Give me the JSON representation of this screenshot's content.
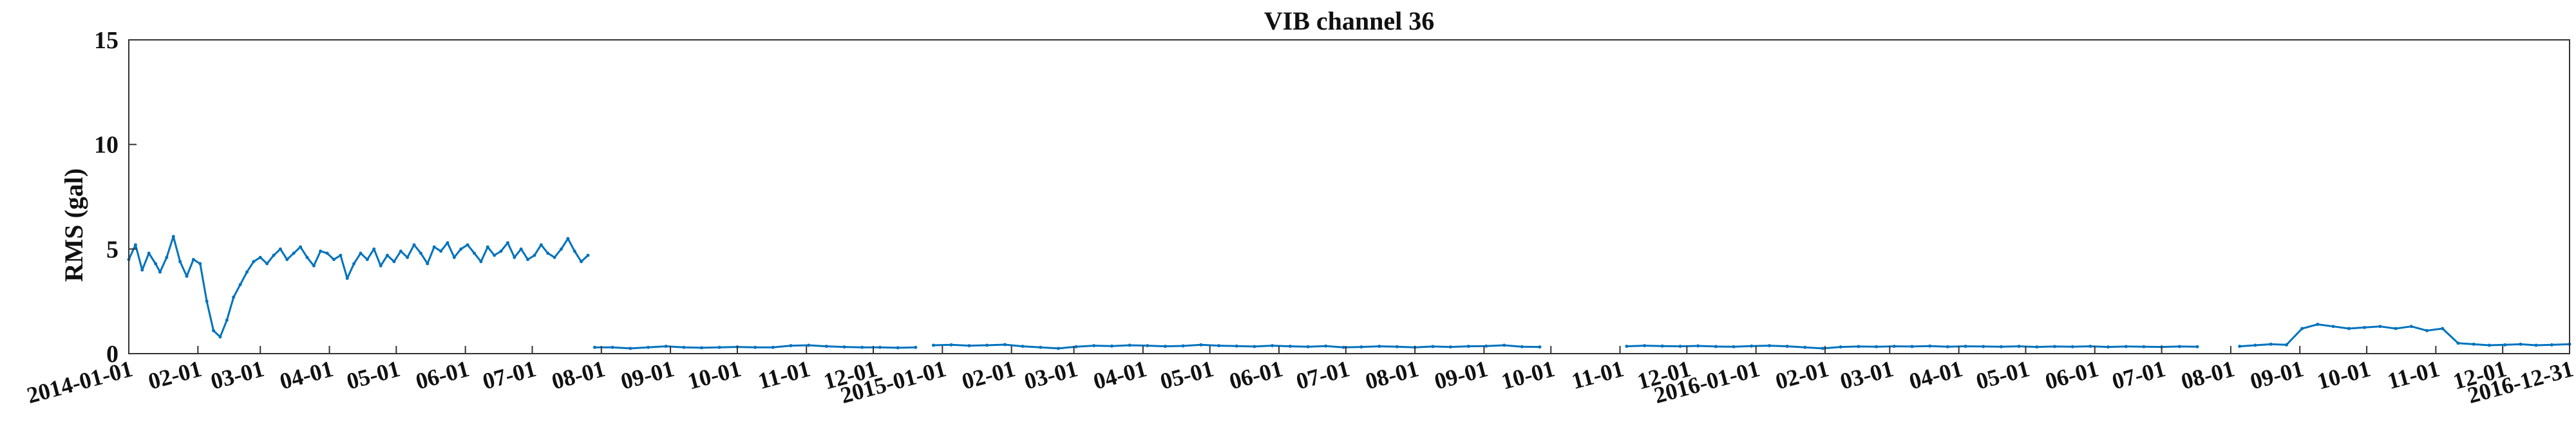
{
  "chart_data": {
    "type": "line",
    "title": "VIB channel 36",
    "xlabel": "",
    "ylabel": "RMS (gal)",
    "ylim": [
      0,
      15
    ],
    "yticks": [
      0,
      5,
      10,
      15
    ],
    "xlim": [
      "2014-01-01",
      "2016-12-31"
    ],
    "xticks": [
      "2014-01-01",
      "2014-02-01",
      "2014-03-01",
      "2014-04-01",
      "2014-05-01",
      "2014-06-01",
      "2014-07-01",
      "2014-08-01",
      "2014-09-01",
      "2014-10-01",
      "2014-11-01",
      "2014-12-01",
      "2015-01-01",
      "2015-02-01",
      "2015-03-01",
      "2015-04-01",
      "2015-05-01",
      "2015-06-01",
      "2015-07-01",
      "2015-08-01",
      "2015-09-01",
      "2015-10-01",
      "2015-11-01",
      "2015-12-01",
      "2016-01-01",
      "2016-02-01",
      "2016-03-01",
      "2016-04-01",
      "2016-05-01",
      "2016-06-01",
      "2016-07-01",
      "2016-08-01",
      "2016-09-01",
      "2016-10-01",
      "2016-11-01",
      "2016-12-01",
      "2016-12-31"
    ],
    "xtick_labels": [
      "2014-01-01",
      "02-01",
      "03-01",
      "04-01",
      "05-01",
      "06-01",
      "07-01",
      "08-01",
      "09-01",
      "10-01",
      "11-01",
      "12-01",
      "2015-01-01",
      "02-01",
      "03-01",
      "04-01",
      "05-01",
      "06-01",
      "07-01",
      "08-01",
      "09-01",
      "10-01",
      "11-01",
      "12-01",
      "2016-01-01",
      "02-01",
      "03-01",
      "04-01",
      "05-01",
      "06-01",
      "07-01",
      "08-01",
      "09-01",
      "10-01",
      "11-01",
      "12-01",
      "2016-12-31"
    ],
    "grid": false,
    "line_color": "#0072BD",
    "series": [
      {
        "segments": [
          {
            "x": [
              "2014-01-01",
              "2014-01-04",
              "2014-01-07",
              "2014-01-10",
              "2014-01-13",
              "2014-01-15",
              "2014-01-18",
              "2014-01-21",
              "2014-01-24",
              "2014-01-27",
              "2014-01-30",
              "2014-02-02",
              "2014-02-05",
              "2014-02-08",
              "2014-02-11",
              "2014-02-14",
              "2014-02-17",
              "2014-02-20",
              "2014-02-23",
              "2014-02-26",
              "2014-03-01",
              "2014-03-04",
              "2014-03-07",
              "2014-03-10",
              "2014-03-13",
              "2014-03-16",
              "2014-03-19",
              "2014-03-22",
              "2014-03-25",
              "2014-03-28",
              "2014-03-31",
              "2014-04-03",
              "2014-04-06",
              "2014-04-09",
              "2014-04-12",
              "2014-04-15",
              "2014-04-18",
              "2014-04-21",
              "2014-04-24",
              "2014-04-27",
              "2014-04-30",
              "2014-05-03",
              "2014-05-06",
              "2014-05-09",
              "2014-05-12",
              "2014-05-15",
              "2014-05-18",
              "2014-05-21",
              "2014-05-24",
              "2014-05-27",
              "2014-05-30",
              "2014-06-02",
              "2014-06-05",
              "2014-06-08",
              "2014-06-11",
              "2014-06-14",
              "2014-06-17",
              "2014-06-20",
              "2014-06-23",
              "2014-06-26",
              "2014-06-29",
              "2014-07-02",
              "2014-07-05",
              "2014-07-08",
              "2014-07-11",
              "2014-07-14",
              "2014-07-17",
              "2014-07-20",
              "2014-07-23",
              "2014-07-26"
            ],
            "y": [
              4.5,
              5.2,
              4.0,
              4.8,
              4.3,
              3.9,
              4.6,
              5.6,
              4.4,
              3.7,
              4.5,
              4.3,
              2.5,
              1.1,
              0.8,
              1.6,
              2.7,
              3.3,
              3.9,
              4.4,
              4.6,
              4.3,
              4.7,
              5.0,
              4.5,
              4.8,
              5.1,
              4.6,
              4.2,
              4.9,
              4.8,
              4.5,
              4.7,
              3.6,
              4.3,
              4.8,
              4.5,
              5.0,
              4.2,
              4.7,
              4.4,
              4.9,
              4.6,
              5.2,
              4.8,
              4.3,
              5.1,
              4.9,
              5.3,
              4.6,
              5.0,
              5.2,
              4.8,
              4.4,
              5.1,
              4.7,
              4.9,
              5.3,
              4.6,
              5.0,
              4.5,
              4.7,
              5.2,
              4.8,
              4.6,
              5.0,
              5.5,
              4.9,
              4.4,
              4.7
            ]
          },
          {
            "x": [
              "2014-07-29",
              "2014-08-06",
              "2014-08-14",
              "2014-08-22",
              "2014-08-30",
              "2014-09-07",
              "2014-09-15",
              "2014-09-23",
              "2014-10-01",
              "2014-10-09",
              "2014-10-17",
              "2014-10-25",
              "2014-11-02",
              "2014-11-10",
              "2014-11-18",
              "2014-11-26",
              "2014-12-04",
              "2014-12-12",
              "2014-12-20"
            ],
            "y": [
              0.3,
              0.3,
              0.25,
              0.3,
              0.35,
              0.3,
              0.28,
              0.3,
              0.32,
              0.3,
              0.3,
              0.38,
              0.4,
              0.35,
              0.32,
              0.3,
              0.3,
              0.28,
              0.3
            ]
          },
          {
            "x": [
              "2014-12-28",
              "2015-01-05",
              "2015-01-13",
              "2015-01-21",
              "2015-01-29",
              "2015-02-06",
              "2015-02-14",
              "2015-02-22",
              "2015-03-02",
              "2015-03-10",
              "2015-03-18",
              "2015-03-26",
              "2015-04-03",
              "2015-04-11",
              "2015-04-19",
              "2015-04-27",
              "2015-05-05",
              "2015-05-13",
              "2015-05-21",
              "2015-05-29",
              "2015-06-06",
              "2015-06-14",
              "2015-06-22",
              "2015-06-30",
              "2015-07-08",
              "2015-07-16",
              "2015-07-24",
              "2015-08-01",
              "2015-08-09",
              "2015-08-17",
              "2015-08-25",
              "2015-09-02",
              "2015-09-10",
              "2015-09-18",
              "2015-09-26"
            ],
            "y": [
              0.4,
              0.42,
              0.38,
              0.4,
              0.43,
              0.35,
              0.3,
              0.25,
              0.33,
              0.38,
              0.36,
              0.4,
              0.38,
              0.35,
              0.37,
              0.42,
              0.38,
              0.36,
              0.34,
              0.38,
              0.35,
              0.33,
              0.36,
              0.3,
              0.32,
              0.35,
              0.33,
              0.3,
              0.34,
              0.32,
              0.35,
              0.36,
              0.4,
              0.33,
              0.32
            ]
          },
          {
            "x": [
              "2015-11-04",
              "2015-11-12",
              "2015-11-20",
              "2015-11-28",
              "2015-12-06",
              "2015-12-14",
              "2015-12-22",
              "2015-12-30",
              "2016-01-07",
              "2016-01-15",
              "2016-01-23",
              "2016-01-31",
              "2016-02-08",
              "2016-02-16",
              "2016-02-24",
              "2016-03-03",
              "2016-03-11",
              "2016-03-19",
              "2016-03-27",
              "2016-04-04",
              "2016-04-12",
              "2016-04-20",
              "2016-04-28",
              "2016-05-06",
              "2016-05-14",
              "2016-05-22",
              "2016-05-30",
              "2016-06-07",
              "2016-06-15",
              "2016-06-23",
              "2016-07-01",
              "2016-07-09",
              "2016-07-17"
            ],
            "y": [
              0.35,
              0.38,
              0.36,
              0.35,
              0.37,
              0.34,
              0.33,
              0.36,
              0.38,
              0.35,
              0.3,
              0.25,
              0.32,
              0.34,
              0.33,
              0.35,
              0.34,
              0.36,
              0.33,
              0.35,
              0.34,
              0.33,
              0.35,
              0.32,
              0.34,
              0.33,
              0.35,
              0.32,
              0.34,
              0.33,
              0.32,
              0.34,
              0.33
            ]
          },
          {
            "x": [
              "2016-08-05",
              "2016-08-12",
              "2016-08-19",
              "2016-08-26",
              "2016-09-02",
              "2016-09-09",
              "2016-09-16",
              "2016-09-23",
              "2016-09-30",
              "2016-10-07",
              "2016-10-14",
              "2016-10-21",
              "2016-10-28",
              "2016-11-04",
              "2016-11-11",
              "2016-11-18",
              "2016-11-25",
              "2016-12-02",
              "2016-12-09",
              "2016-12-16",
              "2016-12-23",
              "2016-12-31"
            ],
            "y": [
              0.35,
              0.4,
              0.45,
              0.42,
              1.2,
              1.4,
              1.3,
              1.2,
              1.25,
              1.3,
              1.2,
              1.3,
              1.1,
              1.2,
              0.5,
              0.45,
              0.4,
              0.42,
              0.45,
              0.4,
              0.42,
              0.45
            ]
          }
        ]
      }
    ]
  }
}
